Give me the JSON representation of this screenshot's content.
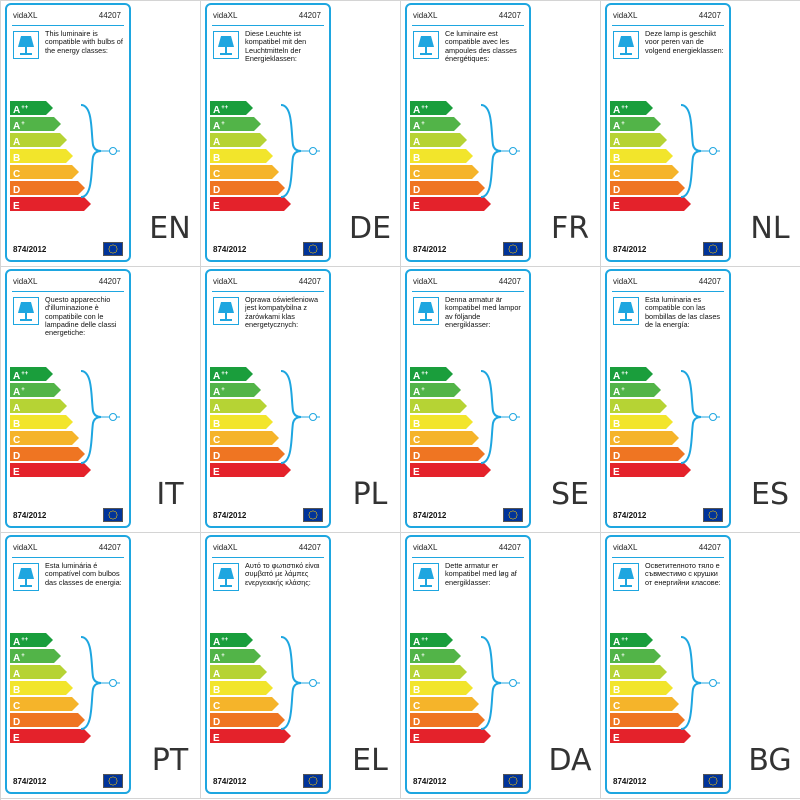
{
  "brand": "vidaXL",
  "product_code": "44207",
  "regulation": "874/2012",
  "classes": [
    {
      "letter": "A",
      "sup": "++",
      "color": "#1a9e3c"
    },
    {
      "letter": "A",
      "sup": "+",
      "color": "#52b448"
    },
    {
      "letter": "A",
      "sup": "",
      "color": "#b6d334"
    },
    {
      "letter": "B",
      "sup": "",
      "color": "#f2e52b"
    },
    {
      "letter": "C",
      "sup": "",
      "color": "#f5b42a"
    },
    {
      "letter": "D",
      "sup": "",
      "color": "#ef7522"
    },
    {
      "letter": "E",
      "sup": "",
      "color": "#e4222b"
    }
  ],
  "colors": {
    "accent": "#1ea6e0",
    "eu_flag": "#003399",
    "eu_star": "#ffcc00"
  },
  "icons": {
    "lamp": "lamp-icon",
    "flag": "eu-flag-icon"
  },
  "labels": [
    {
      "lang": "EN",
      "text": "This luminaire is compatible with bulbs of the energy classes:"
    },
    {
      "lang": "DE",
      "text": "Diese Leuchte ist kompatibel mit den Leuchtmitteln der Energieklassen:"
    },
    {
      "lang": "FR",
      "text": "Ce luminaire est compatible avec les ampoules des classes énergétiques:"
    },
    {
      "lang": "NL",
      "text": "Deze lamp is geschikt voor peren van de volgend energieklassen:"
    },
    {
      "lang": "IT",
      "text": "Questo apparecchio d'illuminazione è compatibile con le lampadine delle classi energetiche:"
    },
    {
      "lang": "PL",
      "text": "Oprawa oświetleniowa jest kompatybilna z żarówkami klas energetycznych:"
    },
    {
      "lang": "SE",
      "text": "Denna armatur är kompatibel med lampor av följande energiklasser:"
    },
    {
      "lang": "ES",
      "text": "Esta luminaria es compatible con las bombillas de las clases de la energía:"
    },
    {
      "lang": "PT",
      "text": "Esta luminária é compatível com bulbos das classes de energia:"
    },
    {
      "lang": "EL",
      "text": "Αυτό το φωτιστικό είναι συμβατό με λάμπες ενεργειακής κλάσης:"
    },
    {
      "lang": "DA",
      "text": "Dette armatur er kompatibel med løg af energiklasser:"
    },
    {
      "lang": "BG",
      "text": "Осветителното тяло е съвместимо с крушки от енергийни класове:"
    }
  ]
}
